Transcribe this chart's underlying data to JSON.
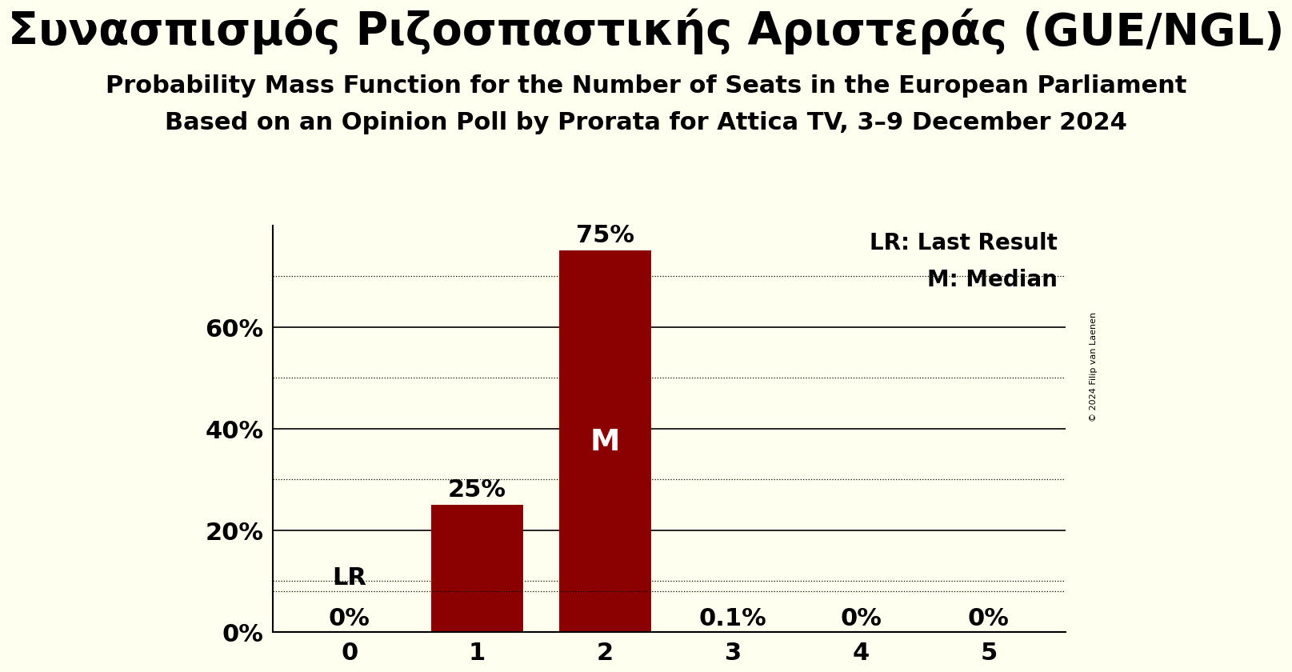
{
  "title_greek": "Συνασπισμός Ριζοσπαστικής Αριστεράς (GUE/NGL)",
  "subtitle1": "Probability Mass Function for the Number of Seats in the European Parliament",
  "subtitle2": "Based on an Opinion Poll by Prorata for Attica TV, 3–9 December 2024",
  "copyright": "© 2024 Filip van Laenen",
  "categories": [
    0,
    1,
    2,
    3,
    4,
    5
  ],
  "values": [
    0.0,
    0.25,
    0.75,
    0.001,
    0.0,
    0.0
  ],
  "bar_labels": [
    "0%",
    "25%",
    "75%",
    "0.1%",
    "0%",
    "0%"
  ],
  "bar_color": "#8B0000",
  "background_color": "#FFFFF0",
  "text_color": "#000000",
  "ylim": [
    0,
    0.8
  ],
  "yticks": [
    0.0,
    0.2,
    0.4,
    0.6
  ],
  "ytick_labels": [
    "0%",
    "20%",
    "40%",
    "60%"
  ],
  "dotted_grid_lines": [
    0.1,
    0.3,
    0.5,
    0.7
  ],
  "solid_grid_lines": [
    0.2,
    0.4,
    0.6
  ],
  "lr_value": 0.08,
  "lr_label": "LR",
  "median_seat": 2,
  "median_label": "M",
  "legend_lr": "LR: Last Result",
  "legend_m": "M: Median",
  "bar_label_fontsize": 22,
  "title_fontsize": 40,
  "subtitle_fontsize": 22,
  "tick_fontsize": 22,
  "annotation_fontsize": 22,
  "legend_fontsize": 20,
  "bar_width": 0.72
}
